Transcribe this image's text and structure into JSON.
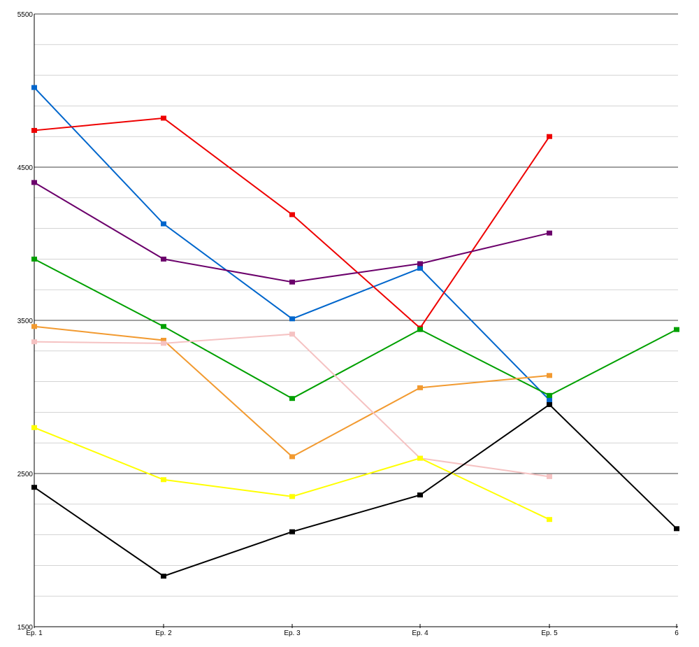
{
  "chart_data": {
    "type": "line",
    "title": "",
    "xlabel": "",
    "ylabel": "",
    "categories": [
      "Ep. 1",
      "Ep. 2",
      "Ep. 3",
      "Ep. 4",
      "Ep. 5",
      "6"
    ],
    "ylim": [
      1500,
      5500
    ],
    "y_major_ticks": [
      1500,
      2500,
      3500,
      4500,
      5500
    ],
    "y_minor_step": 200,
    "grid": true,
    "legend": "none",
    "series": [
      {
        "name": "blue",
        "color": "#0066cc",
        "values": [
          5020,
          4130,
          3510,
          3840,
          2980,
          null
        ]
      },
      {
        "name": "red",
        "color": "#ee0000",
        "values": [
          4740,
          4820,
          4190,
          3450,
          4700,
          null
        ]
      },
      {
        "name": "purple",
        "color": "#6b006b",
        "values": [
          4400,
          3900,
          3750,
          3870,
          4070,
          null
        ]
      },
      {
        "name": "green",
        "color": "#00a000",
        "values": [
          3900,
          3460,
          2990,
          3440,
          3010,
          3440
        ]
      },
      {
        "name": "orange",
        "color": "#f29a30",
        "values": [
          3460,
          3370,
          2610,
          3060,
          3140,
          null
        ]
      },
      {
        "name": "pink",
        "color": "#f5c2c2",
        "values": [
          3360,
          3350,
          3410,
          2600,
          2480,
          null
        ]
      },
      {
        "name": "yellow",
        "color": "#ffff00",
        "values": [
          2800,
          2460,
          2350,
          2600,
          2200,
          null
        ]
      },
      {
        "name": "black",
        "color": "#000000",
        "values": [
          2410,
          1830,
          2120,
          2360,
          2950,
          2140
        ]
      }
    ]
  }
}
